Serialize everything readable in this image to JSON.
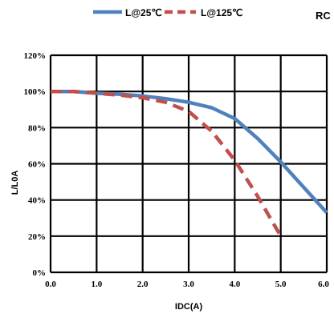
{
  "corner_label": "RC",
  "chart_data": {
    "type": "line",
    "title": "",
    "xlabel": "IDC(A)",
    "ylabel": "L/L0A",
    "xlim": [
      0,
      6
    ],
    "ylim": [
      0,
      120
    ],
    "x_ticks": [
      "0.0",
      "1.0",
      "2.0",
      "3.0",
      "4.0",
      "5.0",
      "6.0"
    ],
    "y_ticks": [
      "0%",
      "20%",
      "40%",
      "60%",
      "80%",
      "100%",
      "120%"
    ],
    "grid": true,
    "legend_position": "top",
    "series": [
      {
        "name": "L@25℃",
        "color": "#4f81bd",
        "style": "solid",
        "x": [
          0,
          0.5,
          1.0,
          1.5,
          2.0,
          2.5,
          3.0,
          3.5,
          4.0,
          4.5,
          5.0,
          5.5,
          6.0
        ],
        "y": [
          100,
          100,
          99,
          98.5,
          97.5,
          96,
          94,
          91,
          85,
          74,
          61,
          47,
          33
        ]
      },
      {
        "name": "L@125℃",
        "color": "#c0504d",
        "style": "dashed",
        "x": [
          0,
          0.5,
          1.0,
          1.5,
          2.0,
          2.5,
          3.0,
          3.5,
          4.0,
          4.5,
          5.0
        ],
        "y": [
          100,
          100,
          99,
          98,
          96.5,
          94,
          89,
          78,
          62,
          42,
          20
        ]
      }
    ]
  }
}
